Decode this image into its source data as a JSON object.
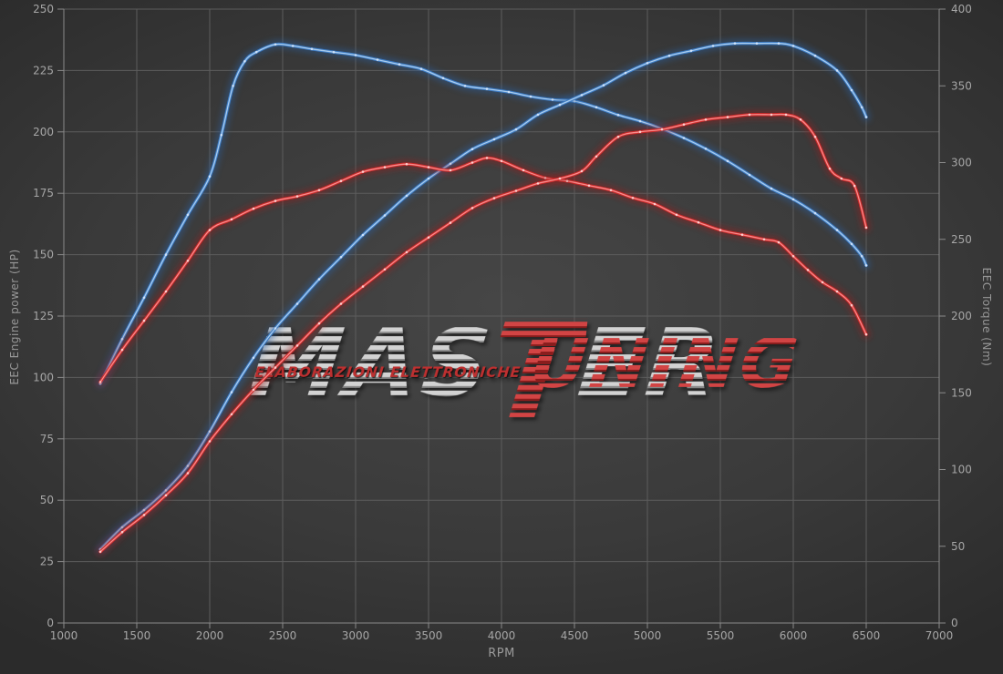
{
  "chart_data": {
    "type": "line",
    "title": "",
    "xlabel": "RPM",
    "grid": "on",
    "legend": "none",
    "x_axis": {
      "min": 1000,
      "max": 7000,
      "ticks": [
        1000,
        1500,
        2000,
        2500,
        3000,
        3500,
        4000,
        4500,
        5000,
        5500,
        6000,
        6500,
        7000
      ]
    },
    "left_axis": {
      "label": "EEC Engine power (HP)",
      "min": 0,
      "max": 250,
      "ticks": [
        0,
        25,
        50,
        75,
        100,
        125,
        150,
        175,
        200,
        225,
        250
      ]
    },
    "right_axis": {
      "label": "EEC Torque (Nm)",
      "min": 0,
      "max": 400,
      "ticks": [
        0,
        50,
        100,
        150,
        200,
        250,
        300,
        350,
        400
      ]
    },
    "series": [
      {
        "name": "torque-blue",
        "axis": "right",
        "unit": "Nm",
        "color": "#3f7ec6",
        "glow": "#2b5f9e",
        "highlight": "#bcd9f5",
        "dot": "#dceafc",
        "points": [
          [
            1250,
            156
          ],
          [
            1400,
            185
          ],
          [
            1550,
            212
          ],
          [
            1700,
            240
          ],
          [
            1850,
            266
          ],
          [
            2000,
            291
          ],
          [
            2080,
            318
          ],
          [
            2160,
            350
          ],
          [
            2240,
            366
          ],
          [
            2320,
            372
          ],
          [
            2450,
            377
          ],
          [
            2570,
            376
          ],
          [
            2700,
            374
          ],
          [
            2850,
            372
          ],
          [
            3000,
            370
          ],
          [
            3150,
            367
          ],
          [
            3300,
            364
          ],
          [
            3450,
            361
          ],
          [
            3600,
            355
          ],
          [
            3750,
            350
          ],
          [
            3900,
            348
          ],
          [
            4050,
            346
          ],
          [
            4200,
            343
          ],
          [
            4350,
            341
          ],
          [
            4500,
            340
          ],
          [
            4650,
            336
          ],
          [
            4800,
            331
          ],
          [
            4950,
            327
          ],
          [
            5100,
            322
          ],
          [
            5250,
            316
          ],
          [
            5400,
            309
          ],
          [
            5550,
            301
          ],
          [
            5700,
            292
          ],
          [
            5850,
            283
          ],
          [
            6000,
            276
          ],
          [
            6150,
            267
          ],
          [
            6300,
            256
          ],
          [
            6400,
            247
          ],
          [
            6470,
            239
          ],
          [
            6500,
            233
          ]
        ]
      },
      {
        "name": "power-blue",
        "axis": "left",
        "unit": "HP",
        "color": "#3f7ec6",
        "glow": "#2b5f9e",
        "highlight": "#bcd9f5",
        "dot": "#dceafc",
        "points": [
          [
            1250,
            30
          ],
          [
            1400,
            39
          ],
          [
            1550,
            46
          ],
          [
            1700,
            54
          ],
          [
            1850,
            64
          ],
          [
            2000,
            78
          ],
          [
            2150,
            94
          ],
          [
            2300,
            108
          ],
          [
            2450,
            120
          ],
          [
            2600,
            130
          ],
          [
            2750,
            140
          ],
          [
            2900,
            149
          ],
          [
            3050,
            158
          ],
          [
            3200,
            166
          ],
          [
            3350,
            174
          ],
          [
            3500,
            181
          ],
          [
            3650,
            187
          ],
          [
            3800,
            193
          ],
          [
            3950,
            197
          ],
          [
            4100,
            201
          ],
          [
            4250,
            207
          ],
          [
            4400,
            211
          ],
          [
            4550,
            215
          ],
          [
            4700,
            219
          ],
          [
            4850,
            224
          ],
          [
            5000,
            228
          ],
          [
            5150,
            231
          ],
          [
            5300,
            233
          ],
          [
            5450,
            235
          ],
          [
            5600,
            236
          ],
          [
            5750,
            236
          ],
          [
            5900,
            236
          ],
          [
            6000,
            235
          ],
          [
            6150,
            231
          ],
          [
            6300,
            225
          ],
          [
            6400,
            217
          ],
          [
            6470,
            210
          ],
          [
            6500,
            206
          ]
        ]
      },
      {
        "name": "torque-red",
        "axis": "right",
        "unit": "Nm",
        "color": "#cd2a2a",
        "glow": "#9a1c1c",
        "highlight": "#ff9d9d",
        "dot": "#ffe2e2",
        "points": [
          [
            1250,
            157
          ],
          [
            1400,
            178
          ],
          [
            1550,
            197
          ],
          [
            1700,
            216
          ],
          [
            1850,
            236
          ],
          [
            2000,
            256
          ],
          [
            2150,
            263
          ],
          [
            2300,
            270
          ],
          [
            2450,
            275
          ],
          [
            2600,
            278
          ],
          [
            2750,
            282
          ],
          [
            2900,
            288
          ],
          [
            3050,
            294
          ],
          [
            3200,
            297
          ],
          [
            3350,
            299
          ],
          [
            3500,
            297
          ],
          [
            3650,
            295
          ],
          [
            3800,
            300
          ],
          [
            3900,
            303
          ],
          [
            4000,
            301
          ],
          [
            4150,
            295
          ],
          [
            4300,
            290
          ],
          [
            4450,
            288
          ],
          [
            4600,
            285
          ],
          [
            4750,
            282
          ],
          [
            4900,
            277
          ],
          [
            5050,
            273
          ],
          [
            5200,
            266
          ],
          [
            5350,
            261
          ],
          [
            5500,
            256
          ],
          [
            5650,
            253
          ],
          [
            5800,
            250
          ],
          [
            5900,
            248
          ],
          [
            6000,
            239
          ],
          [
            6100,
            230
          ],
          [
            6200,
            222
          ],
          [
            6300,
            216
          ],
          [
            6400,
            207
          ],
          [
            6500,
            188
          ]
        ]
      },
      {
        "name": "power-red",
        "axis": "left",
        "unit": "HP",
        "color": "#cd2a2a",
        "glow": "#9a1c1c",
        "highlight": "#ff9d9d",
        "dot": "#ffe2e2",
        "points": [
          [
            1250,
            29
          ],
          [
            1400,
            37
          ],
          [
            1550,
            44
          ],
          [
            1700,
            52
          ],
          [
            1850,
            61
          ],
          [
            2000,
            74
          ],
          [
            2150,
            85
          ],
          [
            2300,
            95
          ],
          [
            2450,
            104
          ],
          [
            2600,
            113
          ],
          [
            2750,
            122
          ],
          [
            2900,
            130
          ],
          [
            3050,
            137
          ],
          [
            3200,
            144
          ],
          [
            3350,
            151
          ],
          [
            3500,
            157
          ],
          [
            3650,
            163
          ],
          [
            3800,
            169
          ],
          [
            3950,
            173
          ],
          [
            4100,
            176
          ],
          [
            4250,
            179
          ],
          [
            4400,
            181
          ],
          [
            4550,
            184
          ],
          [
            4650,
            190
          ],
          [
            4800,
            198
          ],
          [
            4950,
            200
          ],
          [
            5100,
            201
          ],
          [
            5250,
            203
          ],
          [
            5400,
            205
          ],
          [
            5550,
            206
          ],
          [
            5700,
            207
          ],
          [
            5850,
            207
          ],
          [
            5950,
            207
          ],
          [
            6050,
            205
          ],
          [
            6150,
            198
          ],
          [
            6250,
            185
          ],
          [
            6330,
            181
          ],
          [
            6420,
            178
          ],
          [
            6500,
            161
          ]
        ]
      }
    ]
  },
  "watermark": {
    "master_prefix": "MAS",
    "shared_letter": "T",
    "master_suffix": "ER",
    "tuning_suffix": "UNING",
    "subtitle": "ELABORAZIONI ELETTRONICHE",
    "gray": "#b9b9b9",
    "red": "#bf2a2a"
  }
}
